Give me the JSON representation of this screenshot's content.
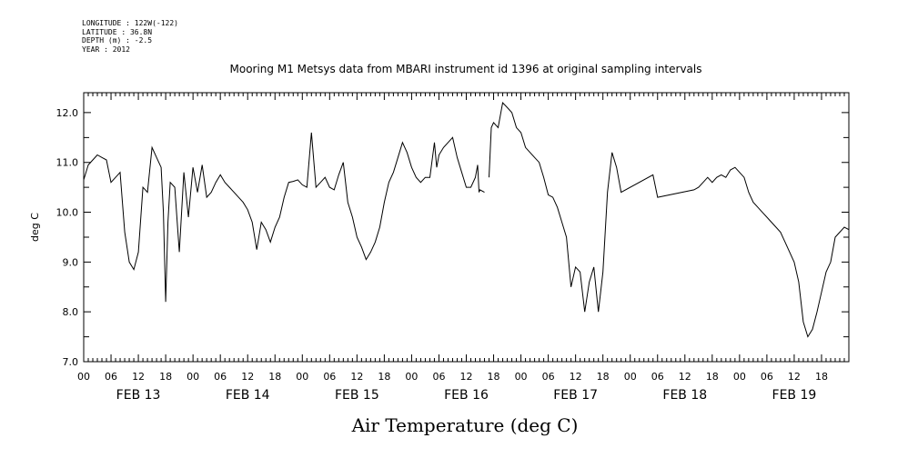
{
  "header": {
    "longitude": "LONGITUDE : 122W(-122)",
    "latitude": "LATITUDE : 36.8N",
    "depth": "DEPTH (m) : -2.5",
    "year": "YEAR : 2012"
  },
  "chart_data": {
    "type": "line",
    "title": "Mooring M1 Metsys data from MBARI instrument id 1396 at original sampling intervals",
    "xlabel": "Air Temperature (deg C)",
    "ylabel": "deg C",
    "xlim_hours": [
      0,
      168
    ],
    "ylim": [
      7.0,
      12.4
    ],
    "y_ticks": [
      "7.0",
      "8.0",
      "9.0",
      "10.0",
      "11.0",
      "12.0"
    ],
    "hour_tick_labels": [
      "00",
      "06",
      "12",
      "18",
      "00",
      "06",
      "12",
      "18",
      "00",
      "06",
      "12",
      "18",
      "00",
      "06",
      "12",
      "18",
      "00",
      "06",
      "12",
      "18",
      "00",
      "06",
      "12",
      "18",
      "00",
      "06",
      "12",
      "18"
    ],
    "day_labels": [
      "FEB 13",
      "FEB 14",
      "FEB 15",
      "FEB 16",
      "FEB 17",
      "FEB 18",
      "FEB 19"
    ],
    "series": [
      {
        "segments": [
          [
            [
              0,
              10.65
            ],
            [
              1,
              10.95
            ],
            [
              2,
              11.05
            ],
            [
              3,
              11.15
            ],
            [
              4,
              11.1
            ],
            [
              5,
              11.05
            ],
            [
              6,
              10.6
            ],
            [
              7,
              10.7
            ],
            [
              8,
              10.8
            ],
            [
              9,
              9.6
            ],
            [
              10,
              9.0
            ],
            [
              11,
              8.85
            ],
            [
              12,
              9.2
            ],
            [
              13,
              10.5
            ],
            [
              14,
              10.4
            ],
            [
              15,
              11.3
            ],
            [
              16,
              11.1
            ],
            [
              17,
              10.9
            ],
            [
              17.5,
              10.0
            ],
            [
              18,
              8.2
            ],
            [
              18.5,
              9.8
            ],
            [
              19,
              10.6
            ],
            [
              20,
              10.5
            ],
            [
              21,
              9.2
            ],
            [
              22,
              10.8
            ],
            [
              23,
              9.9
            ],
            [
              24,
              10.9
            ],
            [
              25,
              10.4
            ],
            [
              26,
              10.95
            ],
            [
              27,
              10.3
            ],
            [
              28,
              10.4
            ],
            [
              29,
              10.6
            ],
            [
              30,
              10.75
            ],
            [
              31,
              10.6
            ],
            [
              32,
              10.5
            ],
            [
              33,
              10.4
            ],
            [
              34,
              10.3
            ],
            [
              35,
              10.2
            ],
            [
              36,
              10.05
            ],
            [
              37,
              9.8
            ],
            [
              38,
              9.25
            ],
            [
              39,
              9.8
            ],
            [
              40,
              9.65
            ],
            [
              41,
              9.4
            ],
            [
              42,
              9.7
            ],
            [
              43,
              9.9
            ],
            [
              44,
              10.3
            ],
            [
              45,
              10.6
            ],
            [
              46,
              10.62
            ],
            [
              47,
              10.65
            ],
            [
              48,
              10.55
            ],
            [
              49,
              10.5
            ],
            [
              50,
              11.6
            ],
            [
              51,
              10.5
            ],
            [
              52,
              10.6
            ],
            [
              53,
              10.7
            ],
            [
              54,
              10.5
            ],
            [
              55,
              10.45
            ],
            [
              56,
              10.75
            ],
            [
              57,
              11.0
            ],
            [
              58,
              10.2
            ],
            [
              59,
              9.9
            ],
            [
              60,
              9.5
            ],
            [
              61,
              9.3
            ],
            [
              62,
              9.05
            ],
            [
              63,
              9.2
            ],
            [
              64,
              9.4
            ],
            [
              65,
              9.7
            ],
            [
              66,
              10.2
            ],
            [
              67,
              10.6
            ],
            [
              68,
              10.8
            ],
            [
              69,
              11.1
            ],
            [
              70,
              11.4
            ],
            [
              71,
              11.2
            ],
            [
              72,
              10.9
            ],
            [
              73,
              10.7
            ],
            [
              74,
              10.6
            ],
            [
              75,
              10.7
            ],
            [
              76,
              10.7
            ],
            [
              77,
              11.4
            ],
            [
              77.5,
              10.9
            ],
            [
              78,
              11.15
            ],
            [
              79,
              11.3
            ],
            [
              80,
              11.4
            ],
            [
              81,
              11.5
            ],
            [
              82,
              11.1
            ],
            [
              83,
              10.8
            ],
            [
              84,
              10.5
            ],
            [
              85,
              10.5
            ],
            [
              86,
              10.7
            ],
            [
              86.5,
              10.95
            ],
            [
              86.8,
              10.4
            ],
            [
              87,
              10.45
            ],
            [
              88,
              10.4
            ]
          ],
          [
            [
              89,
              10.7
            ],
            [
              89.5,
              11.7
            ],
            [
              90,
              11.8
            ],
            [
              91,
              11.7
            ],
            [
              92,
              12.2
            ],
            [
              93,
              12.1
            ],
            [
              94,
              12.0
            ],
            [
              95,
              11.7
            ],
            [
              96,
              11.6
            ],
            [
              97,
              11.3
            ],
            [
              98,
              11.2
            ],
            [
              99,
              11.1
            ],
            [
              100,
              11.0
            ],
            [
              101,
              10.7
            ],
            [
              102,
              10.35
            ],
            [
              103,
              10.3
            ],
            [
              104,
              10.1
            ],
            [
              105,
              9.8
            ],
            [
              106,
              9.5
            ],
            [
              107,
              8.5
            ],
            [
              108,
              8.9
            ],
            [
              109,
              8.8
            ],
            [
              110,
              8.0
            ],
            [
              111,
              8.6
            ],
            [
              112,
              8.9
            ],
            [
              113,
              8.0
            ],
            [
              114,
              8.8
            ],
            [
              115,
              10.4
            ],
            [
              116,
              11.2
            ],
            [
              117,
              10.9
            ],
            [
              118,
              10.4
            ],
            [
              125,
              10.75
            ],
            [
              126,
              10.3
            ],
            [
              134,
              10.45
            ],
            [
              135,
              10.5
            ],
            [
              136,
              10.6
            ],
            [
              137,
              10.7
            ],
            [
              138,
              10.6
            ],
            [
              139,
              10.7
            ],
            [
              140,
              10.75
            ],
            [
              141,
              10.7
            ],
            [
              142,
              10.85
            ],
            [
              143,
              10.9
            ],
            [
              144,
              10.8
            ],
            [
              145,
              10.7
            ],
            [
              146,
              10.4
            ],
            [
              147,
              10.2
            ],
            [
              148,
              10.1
            ],
            [
              149,
              10.0
            ],
            [
              150,
              9.9
            ],
            [
              151,
              9.8
            ],
            [
              152,
              9.7
            ],
            [
              153,
              9.6
            ],
            [
              154,
              9.4
            ],
            [
              155,
              9.2
            ],
            [
              156,
              9.0
            ],
            [
              157,
              8.6
            ],
            [
              158,
              7.8
            ],
            [
              159,
              7.5
            ],
            [
              160,
              7.65
            ],
            [
              161,
              8.0
            ],
            [
              162,
              8.4
            ],
            [
              163,
              8.8
            ],
            [
              164,
              9.0
            ],
            [
              165,
              9.5
            ],
            [
              166,
              9.6
            ],
            [
              167,
              9.7
            ],
            [
              168,
              9.65
            ]
          ]
        ]
      }
    ]
  }
}
